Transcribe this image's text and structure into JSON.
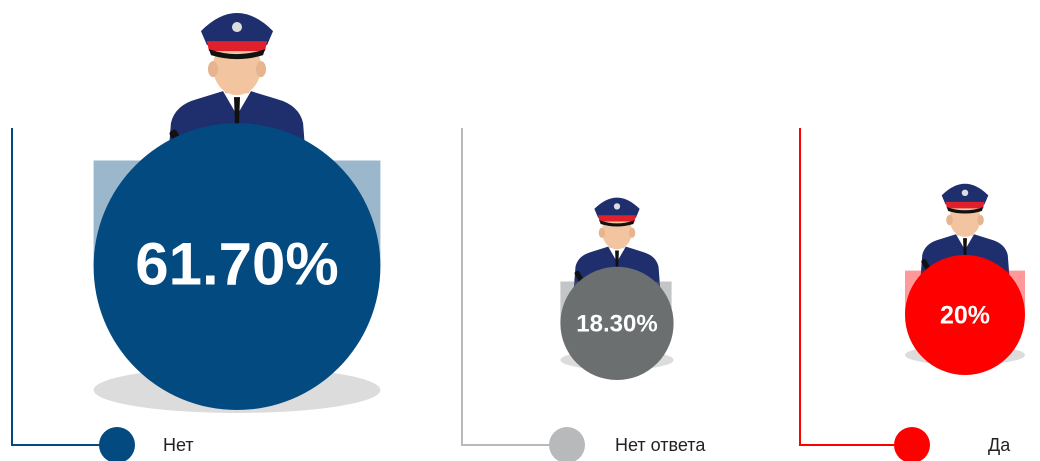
{
  "chart_data": {
    "type": "pictogram",
    "categories": [
      "Нет",
      "Нет ответа",
      "Да"
    ],
    "values": [
      61.7,
      18.3,
      20
    ],
    "value_labels": [
      "61.70%",
      "18.30%",
      "20%"
    ],
    "colors": [
      "#034a80",
      "#6b6f70",
      "#ff0000"
    ],
    "legend_colors": [
      "#034a80",
      "#b8b9bb",
      "#ff0000"
    ]
  }
}
